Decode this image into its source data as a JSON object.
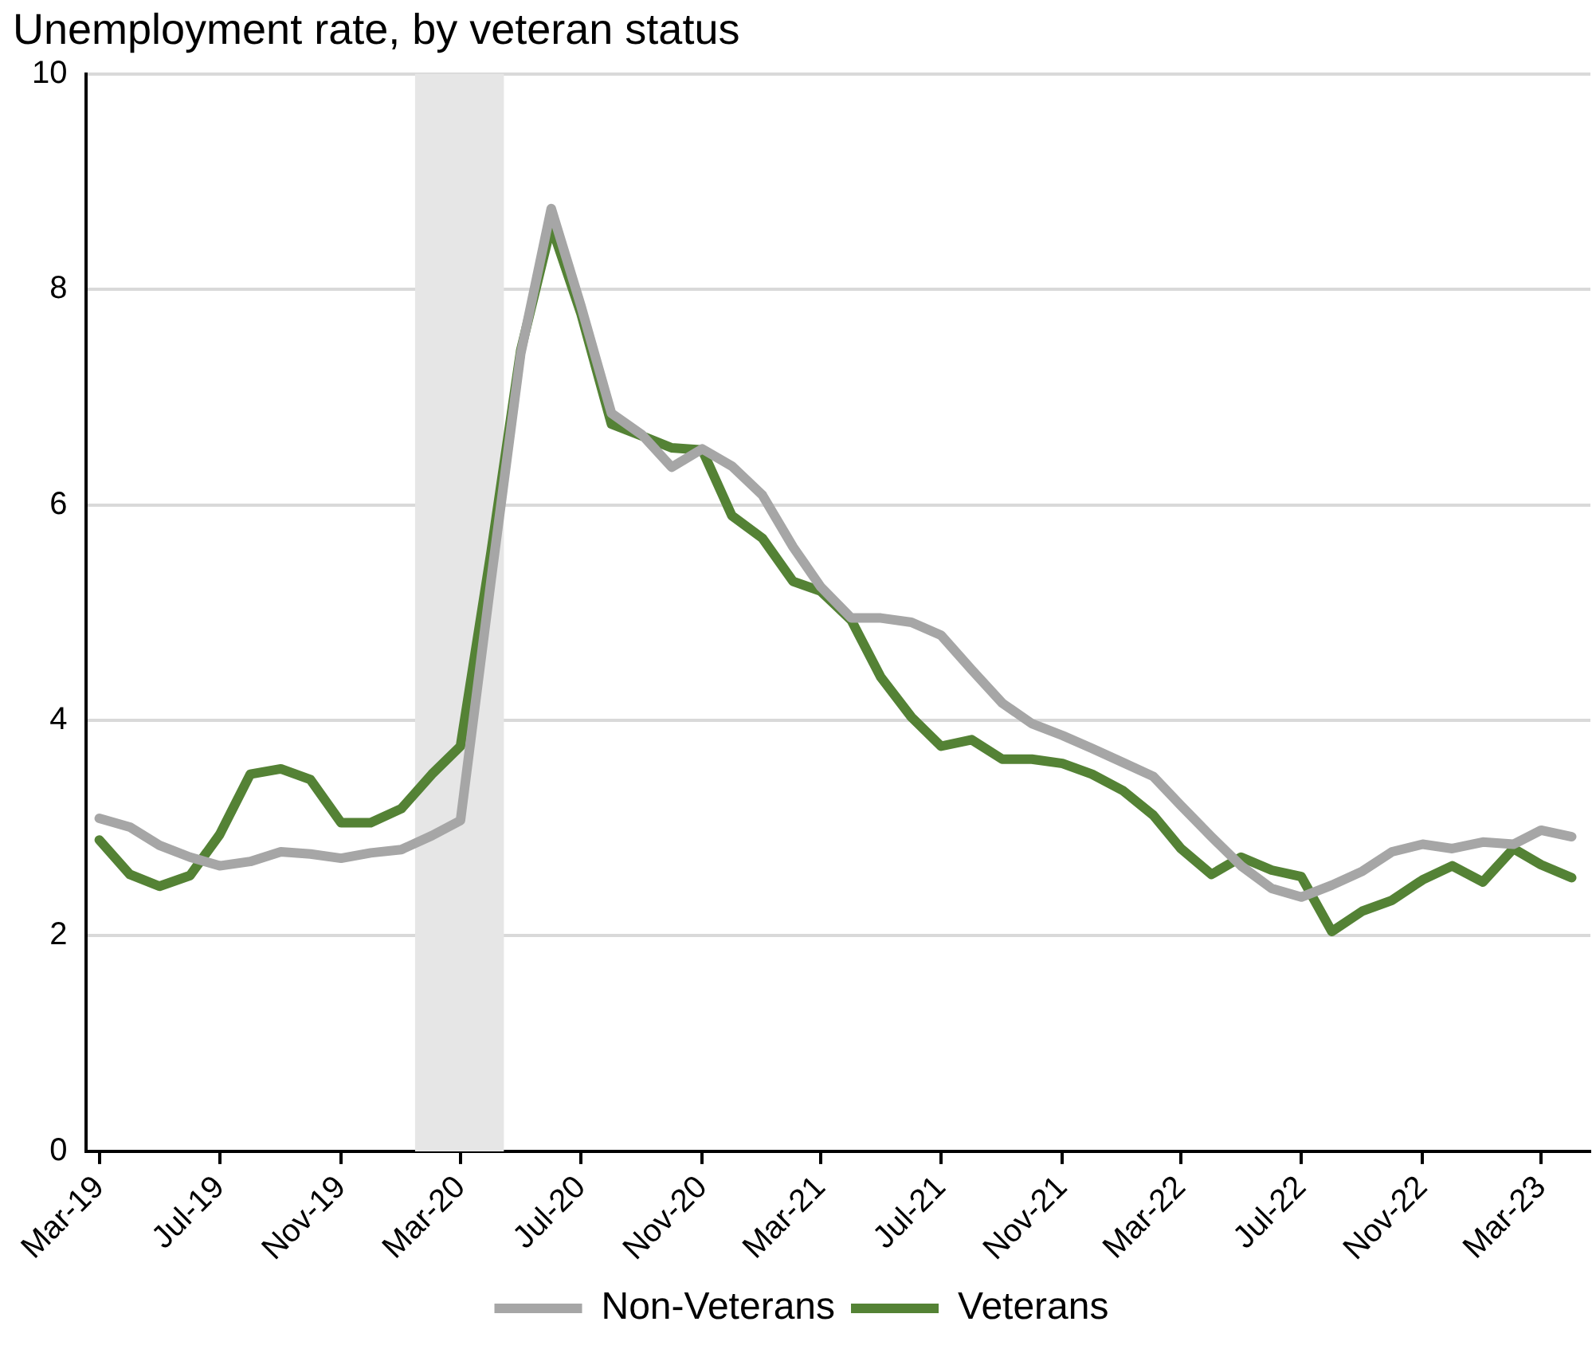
{
  "chart_data": {
    "type": "line",
    "title": "Unemployment rate, by veteran status",
    "x": [
      "2019-03",
      "2019-04",
      "2019-05",
      "2019-06",
      "2019-07",
      "2019-08",
      "2019-09",
      "2019-10",
      "2019-11",
      "2019-12",
      "2020-01",
      "2020-02",
      "2020-03",
      "2020-04",
      "2020-05",
      "2020-06",
      "2020-07",
      "2020-08",
      "2020-09",
      "2020-10",
      "2020-11",
      "2020-12",
      "2021-01",
      "2021-02",
      "2021-03",
      "2021-04",
      "2021-05",
      "2021-06",
      "2021-07",
      "2021-08",
      "2021-09",
      "2021-10",
      "2021-11",
      "2021-12",
      "2022-01",
      "2022-02",
      "2022-03",
      "2022-04",
      "2022-05",
      "2022-06",
      "2022-07",
      "2022-08",
      "2022-09",
      "2022-10",
      "2022-11",
      "2022-12",
      "2023-01",
      "2023-02",
      "2023-03",
      "2023-04"
    ],
    "series": [
      {
        "name": "Non-Veterans",
        "color": "#a6a6a6",
        "values": [
          3.09,
          3.01,
          2.84,
          2.73,
          2.65,
          2.69,
          2.78,
          2.76,
          2.72,
          2.77,
          2.8,
          2.93,
          3.07,
          5.3,
          7.4,
          8.75,
          7.85,
          6.85,
          6.65,
          6.35,
          6.52,
          6.36,
          6.09,
          5.61,
          5.24,
          4.95,
          4.95,
          4.91,
          4.79,
          4.47,
          4.16,
          3.97,
          3.86,
          3.74,
          3.61,
          3.48,
          3.21,
          2.92,
          2.65,
          2.44,
          2.36,
          2.47,
          2.6,
          2.78,
          2.85,
          2.81,
          2.87,
          2.85,
          2.98,
          2.92
        ]
      },
      {
        "name": "Veterans",
        "color": "#548235",
        "values": [
          2.89,
          2.57,
          2.46,
          2.56,
          2.94,
          3.5,
          3.55,
          3.45,
          3.05,
          3.05,
          3.18,
          3.5,
          3.76,
          5.56,
          7.43,
          8.59,
          7.78,
          6.75,
          6.64,
          6.53,
          6.51,
          5.9,
          5.69,
          5.29,
          5.2,
          4.93,
          4.4,
          4.03,
          3.76,
          3.82,
          3.64,
          3.64,
          3.6,
          3.5,
          3.35,
          3.12,
          2.81,
          2.57,
          2.73,
          2.61,
          2.55,
          2.04,
          2.23,
          2.33,
          2.52,
          2.65,
          2.5,
          2.81,
          2.66,
          2.54
        ]
      }
    ],
    "xlim": [
      "2019-02-16",
      "2023-04-20"
    ],
    "xticks": [
      {
        "value": "2019-03",
        "label": "Mar-19"
      },
      {
        "value": "2019-07",
        "label": "Jul-19"
      },
      {
        "value": "2019-11",
        "label": "Nov-19"
      },
      {
        "value": "2020-03",
        "label": "Mar-20"
      },
      {
        "value": "2020-07",
        "label": "Jul-20"
      },
      {
        "value": "2020-11",
        "label": "Nov-20"
      },
      {
        "value": "2021-03",
        "label": "Mar-21"
      },
      {
        "value": "2021-07",
        "label": "Jul-21"
      },
      {
        "value": "2021-11",
        "label": "Nov-21"
      },
      {
        "value": "2022-03",
        "label": "Mar-22"
      },
      {
        "value": "2022-07",
        "label": "Jul-22"
      },
      {
        "value": "2022-11",
        "label": "Nov-22"
      },
      {
        "value": "2023-03",
        "label": "Mar-23"
      }
    ],
    "ylim": [
      0,
      10
    ],
    "yticks": [
      0,
      2,
      4,
      6,
      8,
      10
    ],
    "bands": [
      {
        "axis": "x",
        "from": "2020-01-15",
        "to": "2020-04-14",
        "color": "#e6e6e6"
      }
    ],
    "grid": "y",
    "legend": "bottom",
    "marker": "none",
    "line_style": "solid"
  }
}
